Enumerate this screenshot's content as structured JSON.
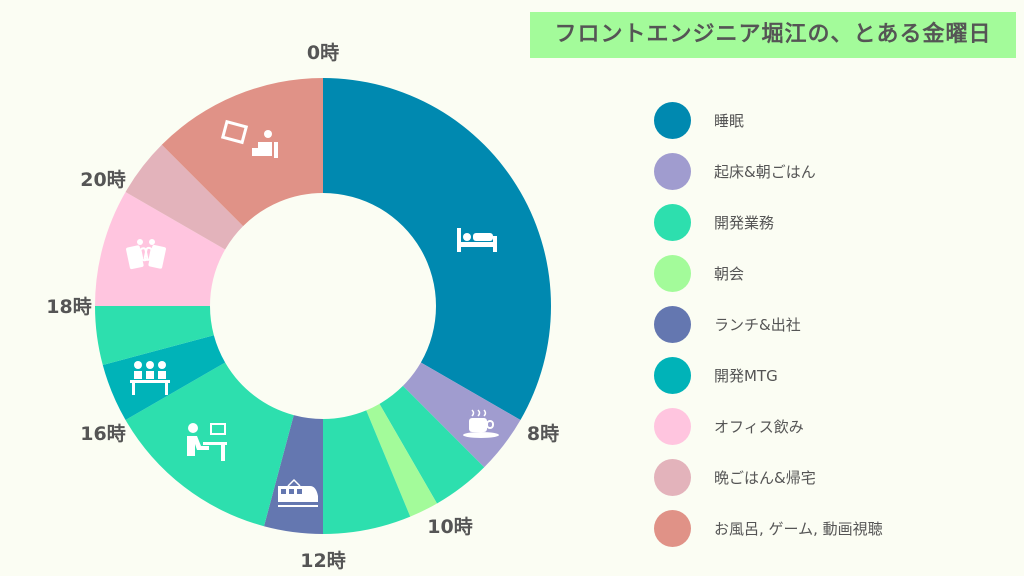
{
  "title": "フロントエンジニア堀江の、とある金曜日",
  "chart_data": {
    "type": "pie",
    "subtype": "donut",
    "title": "フロントエンジニア堀江の、とある金曜日",
    "unit": "hours",
    "start_hour": 0,
    "categories": [
      {
        "name": "睡眠",
        "color": "#0089b0"
      },
      {
        "name": "起床&朝ごはん",
        "color": "#a09ccf"
      },
      {
        "name": "開発業務",
        "color": "#2ddfae"
      },
      {
        "name": "朝会",
        "color": "#a3fb9a"
      },
      {
        "name": "ランチ&出社",
        "color": "#6477b0"
      },
      {
        "name": "開発MTG",
        "color": "#00b3b8"
      },
      {
        "name": "オフィス飲み",
        "color": "#ffc5df"
      },
      {
        "name": "晩ごはん&帰宅",
        "color": "#e3b3bb"
      },
      {
        "name": "お風呂, ゲーム, 動画視聴",
        "color": "#e09287"
      }
    ],
    "segments": [
      {
        "category": 0,
        "hours": 8,
        "icon": "bed-icon"
      },
      {
        "category": 1,
        "hours": 1,
        "icon": "coffee-icon"
      },
      {
        "category": 2,
        "hours": 1
      },
      {
        "category": 3,
        "hours": 0.5
      },
      {
        "category": 2,
        "hours": 1.5
      },
      {
        "category": 4,
        "hours": 1,
        "icon": "train-icon"
      },
      {
        "category": 2,
        "hours": 3,
        "icon": "desk-worker-icon"
      },
      {
        "category": 5,
        "hours": 1,
        "icon": "meeting-icon"
      },
      {
        "category": 2,
        "hours": 1
      },
      {
        "category": 6,
        "hours": 2,
        "icon": "beer-cheers-icon"
      },
      {
        "category": 7,
        "hours": 1
      },
      {
        "category": 8,
        "hours": 3,
        "icon": "tv-watching-icon"
      }
    ],
    "hour_labels": [
      {
        "hour": 0,
        "label": "0時"
      },
      {
        "hour": 8,
        "label": "8時"
      },
      {
        "hour": 10,
        "label": "10時"
      },
      {
        "hour": 12,
        "label": "12時"
      },
      {
        "hour": 16,
        "label": "16時"
      },
      {
        "hour": 18,
        "label": "18時"
      },
      {
        "hour": 20,
        "label": "20時"
      }
    ],
    "legend_position": "right"
  }
}
